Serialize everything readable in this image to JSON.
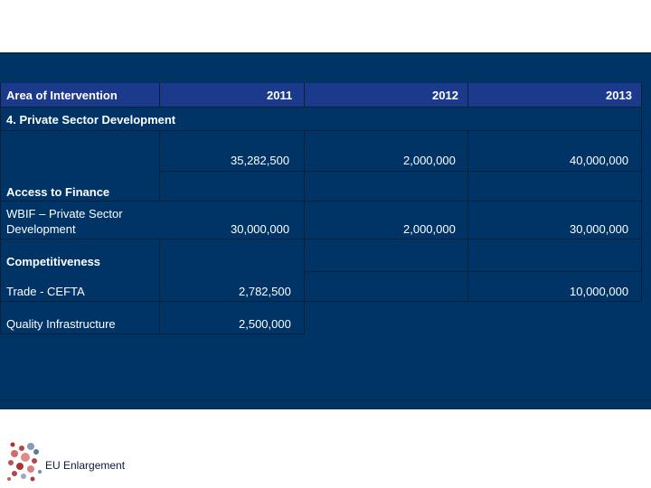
{
  "table": {
    "headers": [
      "Area of Intervention",
      "2011",
      "2012",
      "2013"
    ],
    "section_title": "4. Private Sector Development",
    "total_row": {
      "label": "",
      "values": [
        "35,282,500",
        "2,000,000",
        "40,000,000"
      ]
    },
    "group1": {
      "title": "Access to Finance"
    },
    "row_wbif": {
      "label_line1": "WBIF – Private Sector",
      "label_line2": "Development",
      "values": [
        "30,000,000",
        "2,000,000",
        "30,000,000"
      ]
    },
    "group2": {
      "title": "Competitiveness"
    },
    "row_cefta": {
      "label": "Trade - CEFTA",
      "values": [
        "2,782,500",
        "",
        "10,000,000"
      ]
    },
    "row_quality": {
      "label": "Quality Infrastructure",
      "values": [
        "2,500,000",
        "",
        ""
      ]
    }
  },
  "footer": {
    "logo_text": "EU Enlargement"
  },
  "colors": {
    "panel": "#003366",
    "header": "#1b3a8c",
    "text": "#ffffff"
  }
}
